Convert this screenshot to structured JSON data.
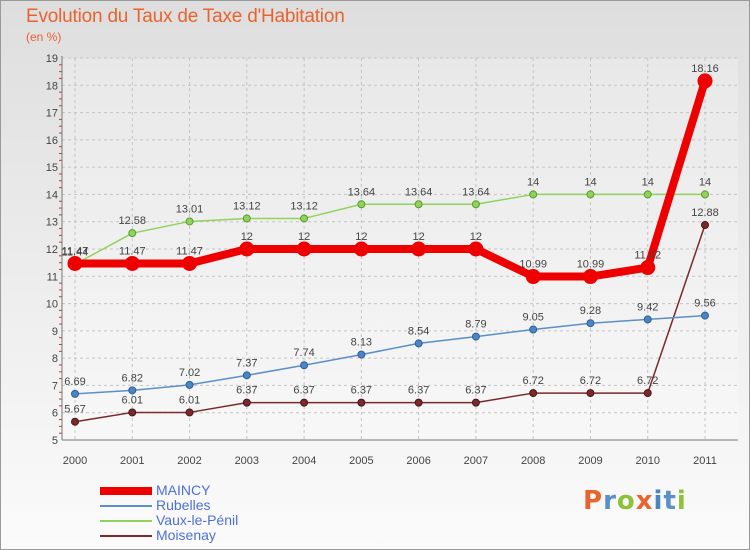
{
  "header": {
    "title": "Evolution du Taux de Taxe d'Habitation",
    "subtitle": "(en %)"
  },
  "logo": {
    "text": "Proxiti"
  },
  "chart_data": {
    "type": "line",
    "title": "Evolution du Taux de Taxe d'Habitation",
    "ylabel": "(en %)",
    "xlabel": "",
    "x": [
      "2000",
      "2001",
      "2002",
      "2003",
      "2004",
      "2005",
      "2006",
      "2007",
      "2008",
      "2009",
      "2010",
      "2011"
    ],
    "ylim": [
      5,
      19
    ],
    "yticks": [
      "5",
      "6",
      "7",
      "8",
      "9",
      "10",
      "11",
      "12",
      "13",
      "14",
      "15",
      "16",
      "17",
      "18",
      "19"
    ],
    "grid": true,
    "legend_position": "bottom-left",
    "series": [
      {
        "name": "MAINCY",
        "color": "#ee0000",
        "values": [
          11.47,
          11.47,
          11.47,
          12,
          12,
          12,
          12,
          12,
          10.99,
          10.99,
          11.32,
          18.16
        ],
        "labels": [
          "11.47",
          "11.47",
          "11.47",
          "12",
          "12",
          "12",
          "12",
          "12",
          "10.99",
          "10.99",
          "11.32",
          "18.16"
        ]
      },
      {
        "name": "Rubelles",
        "color": "#5a8fc8",
        "values": [
          6.69,
          6.82,
          7.02,
          7.37,
          7.74,
          8.13,
          8.54,
          8.79,
          9.05,
          9.28,
          9.42,
          9.56
        ],
        "labels": [
          "6.69",
          "6.82",
          "7.02",
          "7.37",
          "7.74",
          "8.13",
          "8.54",
          "8.79",
          "9.05",
          "9.28",
          "9.42",
          "9.56"
        ]
      },
      {
        "name": "Vaux-le-Pénil",
        "color": "#8fd35c",
        "values": [
          11.44,
          12.58,
          13.01,
          13.12,
          13.12,
          13.64,
          13.64,
          13.64,
          14,
          14,
          14,
          14
        ],
        "labels": [
          "11.44",
          "12.58",
          "13.01",
          "13.12",
          "13.12",
          "13.64",
          "13.64",
          "13.64",
          "14",
          "14",
          "14",
          "14"
        ]
      },
      {
        "name": "Moisenay",
        "color": "#7a2a2a",
        "values": [
          5.67,
          6.01,
          6.01,
          6.37,
          6.37,
          6.37,
          6.37,
          6.37,
          6.72,
          6.72,
          6.72,
          12.88
        ],
        "labels": [
          "5.67",
          "6.01",
          "6.01",
          "6.37",
          "6.37",
          "6.37",
          "6.37",
          "6.37",
          "6.72",
          "6.72",
          "6.72",
          "12.88"
        ]
      }
    ]
  }
}
